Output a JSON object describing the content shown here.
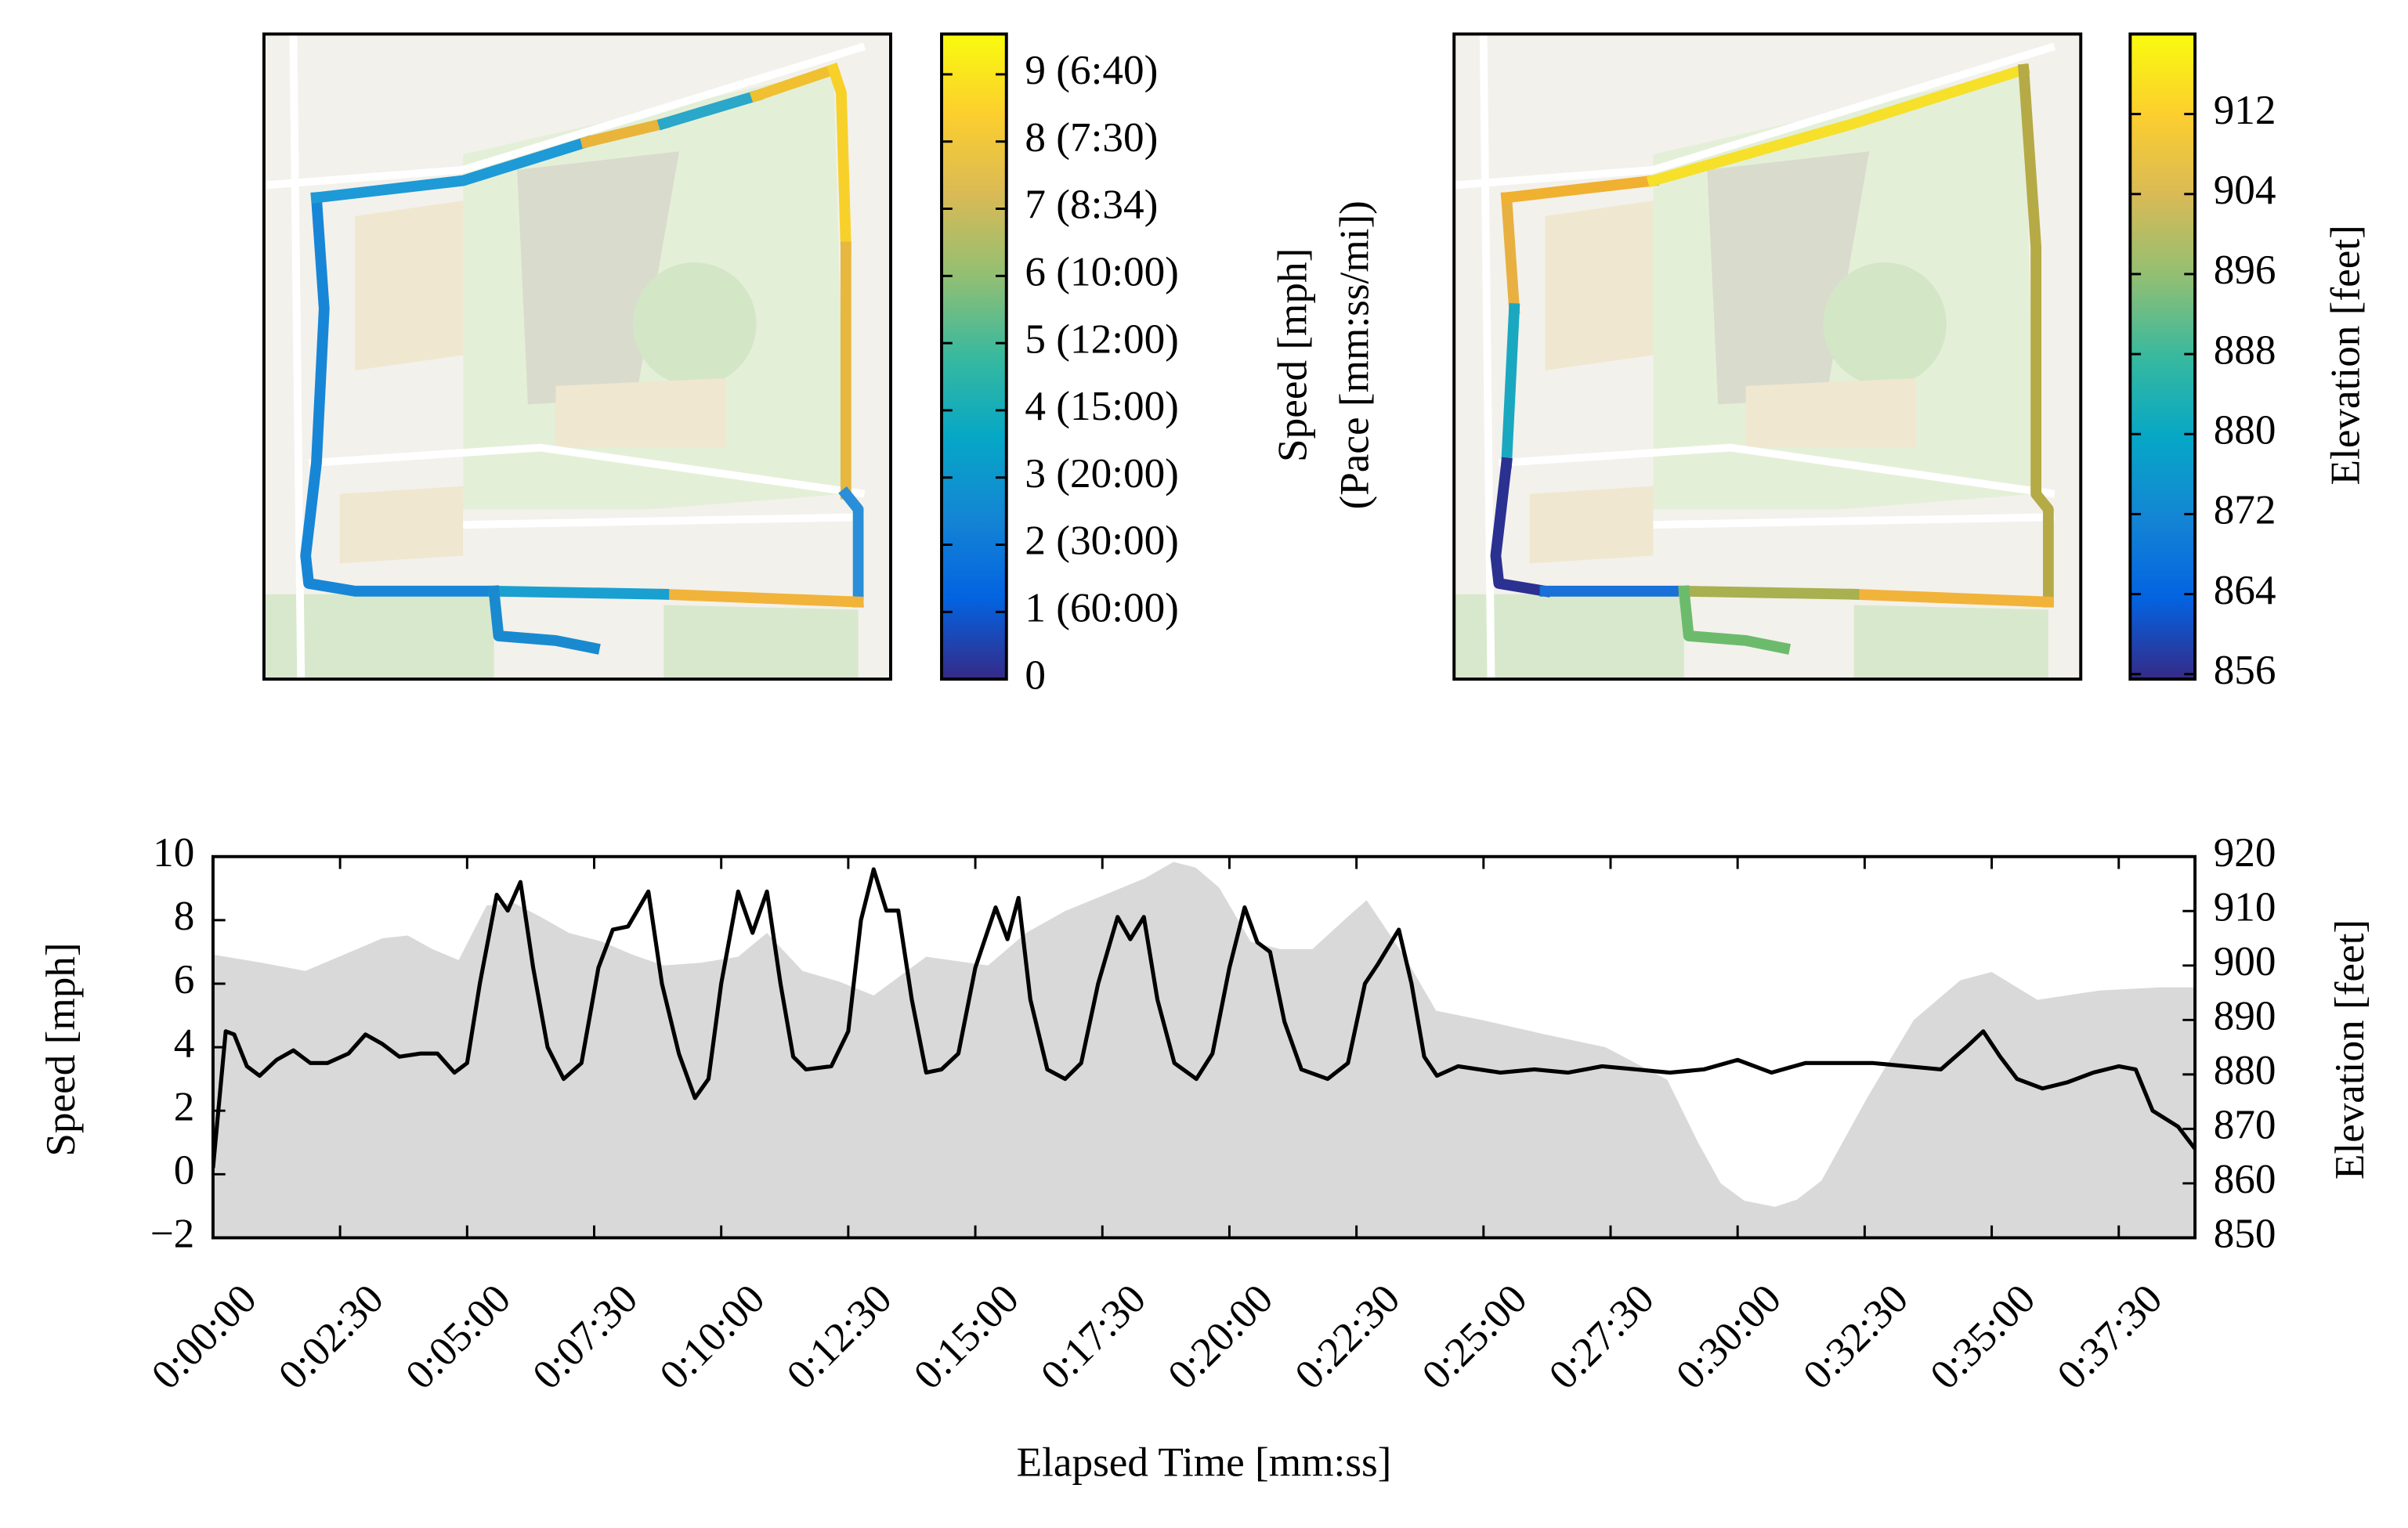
{
  "chart_data": [
    {
      "type": "map",
      "clabel": [
        "Speed [mph]",
        "(Pace [mm:ss/mi])"
      ],
      "clim": [
        0,
        9.6
      ],
      "cticks": [
        0,
        {
          "value": 1,
          "label": "1 (60:00)"
        },
        {
          "value": 2,
          "label": "2 (30:00)"
        },
        {
          "value": 3,
          "label": "3 (20:00)"
        },
        {
          "value": 4,
          "label": "4 (15:00)"
        },
        {
          "value": 5,
          "label": "5 (12:00)"
        },
        {
          "value": 6,
          "label": "6 (10:00)"
        },
        {
          "value": 7,
          "label": "7 (8:34)"
        },
        {
          "value": 8,
          "label": "8 (7:30)"
        },
        {
          "value": 9,
          "label": "9 (6:40)"
        }
      ],
      "colormap": [
        "#352a87",
        "#0363e1",
        "#1485d4",
        "#06a7c6",
        "#38b99e",
        "#92bf73",
        "#d9ba56",
        "#fcce2e",
        "#f9fb0e"
      ]
    },
    {
      "type": "map",
      "clabel": [
        "Elevation [feet]"
      ],
      "clim": [
        855.5,
        920
      ],
      "cticks": [
        856,
        864,
        872,
        880,
        888,
        896,
        904,
        912
      ],
      "colormap": [
        "#352a87",
        "#0363e1",
        "#1485d4",
        "#06a7c6",
        "#38b99e",
        "#92bf73",
        "#d9ba56",
        "#fcce2e",
        "#f9fb0e"
      ]
    },
    {
      "type": "line",
      "xlabel": "Elapsed Time [mm:ss]",
      "ylabel": "Speed [mph]",
      "y2label": "Elevation [feet]",
      "xlim": [
        0,
        2340
      ],
      "ylim": [
        -2,
        10
      ],
      "y2lim": [
        850,
        920
      ],
      "xticks": [
        {
          "value": 0,
          "label": "0:00:00"
        },
        {
          "value": 150,
          "label": "0:02:30"
        },
        {
          "value": 300,
          "label": "0:05:00"
        },
        {
          "value": 450,
          "label": "0:07:30"
        },
        {
          "value": 600,
          "label": "0:10:00"
        },
        {
          "value": 750,
          "label": "0:12:30"
        },
        {
          "value": 900,
          "label": "0:15:00"
        },
        {
          "value": 1050,
          "label": "0:17:30"
        },
        {
          "value": 1200,
          "label": "0:20:00"
        },
        {
          "value": 1350,
          "label": "0:22:30"
        },
        {
          "value": 1500,
          "label": "0:25:00"
        },
        {
          "value": 1650,
          "label": "0:27:30"
        },
        {
          "value": 1800,
          "label": "0:30:00"
        },
        {
          "value": 1950,
          "label": "0:32:30"
        },
        {
          "value": 2100,
          "label": "0:35:00"
        },
        {
          "value": 2250,
          "label": "0:37:30"
        }
      ],
      "yticks": [
        {
          "value": -2,
          "label": "−2"
        },
        0,
        2,
        4,
        6,
        8,
        10
      ],
      "y2ticks": [
        850,
        860,
        870,
        880,
        890,
        900,
        910,
        920
      ],
      "series": [
        {
          "style": "area",
          "axis": "y2",
          "color": "#d9d9d9",
          "x": [
            0,
            58,
            109,
            170,
            200,
            230,
            259,
            290,
            323,
            355,
            386,
            420,
            459,
            495,
            532,
            575,
            620,
            654,
            696,
            740,
            780,
            842,
            915,
            960,
            1006,
            1061,
            1100,
            1134,
            1160,
            1188,
            1225,
            1260,
            1298,
            1340,
            1362,
            1407,
            1444,
            1498,
            1571,
            1644,
            1717,
            1753,
            1780,
            1808,
            1844,
            1870,
            1899,
            1954,
            2008,
            2063,
            2100,
            2154,
            2227,
            2300,
            2340
          ],
          "values": [
            902,
            900.5,
            899,
            903,
            905,
            905.5,
            903,
            901,
            911,
            911.5,
            909,
            906,
            904.4,
            902,
            900,
            900.5,
            901.6,
            906,
            899,
            897,
            894.5,
            901.6,
            900,
            906,
            910,
            913.5,
            916,
            919,
            918,
            914.3,
            904.4,
            903,
            903,
            909,
            912,
            901.6,
            891.7,
            890,
            887.4,
            885,
            879,
            867.6,
            860,
            856.8,
            855.7,
            857,
            860.5,
            876,
            890,
            897.3,
            898.8,
            893.7,
            895.4,
            896,
            896
          ]
        },
        {
          "style": "line",
          "color": "#000000",
          "x": [
            0,
            15,
            25,
            40,
            55,
            75,
            95,
            115,
            135,
            160,
            180,
            200,
            220,
            245,
            265,
            285,
            300,
            315,
            335,
            348,
            363,
            378,
            395,
            414,
            435,
            455,
            472,
            490,
            514,
            530,
            550,
            569,
            585,
            600,
            620,
            637,
            654,
            670,
            685,
            700,
            730,
            750,
            765,
            780,
            795,
            809,
            825,
            842,
            860,
            880,
            900,
            924,
            938,
            951,
            965,
            985,
            1006,
            1025,
            1045,
            1068,
            1083,
            1099,
            1115,
            1135,
            1161,
            1180,
            1200,
            1218,
            1233,
            1248,
            1265,
            1285,
            1316,
            1340,
            1360,
            1375,
            1400,
            1415,
            1430,
            1445,
            1470,
            1520,
            1560,
            1600,
            1640,
            1680,
            1720,
            1760,
            1800,
            1840,
            1880,
            1920,
            1960,
            2000,
            2040,
            2070,
            2090,
            2110,
            2130,
            2160,
            2190,
            2220,
            2250,
            2270,
            2290,
            2320,
            2340
          ],
          "values": [
            0.2,
            4.5,
            4.4,
            3.4,
            3.1,
            3.6,
            3.9,
            3.5,
            3.5,
            3.8,
            4.4,
            4.1,
            3.7,
            3.8,
            3.8,
            3.2,
            3.5,
            6.0,
            8.8,
            8.3,
            9.2,
            6.5,
            4.0,
            3.0,
            3.5,
            6.5,
            7.7,
            7.8,
            8.9,
            6.0,
            3.8,
            2.4,
            3.0,
            6.0,
            8.9,
            7.6,
            8.9,
            6.0,
            3.7,
            3.3,
            3.4,
            4.5,
            8.0,
            9.6,
            8.3,
            8.3,
            5.5,
            3.2,
            3.3,
            3.8,
            6.5,
            8.4,
            7.4,
            8.7,
            5.5,
            3.3,
            3.0,
            3.5,
            6.0,
            8.1,
            7.4,
            8.1,
            5.5,
            3.5,
            3.0,
            3.8,
            6.5,
            8.4,
            7.3,
            7.0,
            4.8,
            3.3,
            3.0,
            3.5,
            6.0,
            6.6,
            7.7,
            6.0,
            3.7,
            3.1,
            3.4,
            3.2,
            3.3,
            3.2,
            3.4,
            3.3,
            3.2,
            3.3,
            3.6,
            3.2,
            3.5,
            3.5,
            3.5,
            3.4,
            3.3,
            4.0,
            4.5,
            3.7,
            3.0,
            2.7,
            2.9,
            3.2,
            3.4,
            3.3,
            2.0,
            1.5,
            0.8
          ]
        }
      ]
    }
  ]
}
